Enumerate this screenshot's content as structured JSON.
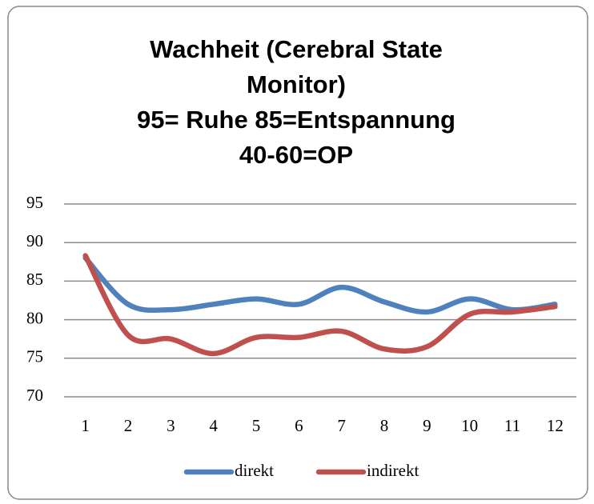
{
  "chart_data": {
    "type": "line",
    "title": "Wachheit (Cerebral State Monitor)\n95= Ruhe 85=Entspannung\n40-60=OP",
    "categories": [
      "1",
      "2",
      "3",
      "4",
      "5",
      "6",
      "7",
      "8",
      "9",
      "10",
      "11",
      "12"
    ],
    "series": [
      {
        "name": "direkt",
        "color": "#4f81bd",
        "values": [
          88,
          82,
          81.3,
          82,
          82.7,
          82,
          84.2,
          82.3,
          81,
          82.7,
          81.3,
          82
        ]
      },
      {
        "name": "indirekt",
        "color": "#c0504d",
        "values": [
          88.3,
          78,
          77.5,
          75.6,
          77.7,
          77.7,
          78.5,
          76.2,
          76.5,
          80.7,
          81,
          81.7
        ]
      }
    ],
    "ylim": [
      70,
      95
    ],
    "yticks": [
      70,
      75,
      80,
      85,
      90,
      95
    ],
    "grid": true,
    "legend": "bottom"
  }
}
